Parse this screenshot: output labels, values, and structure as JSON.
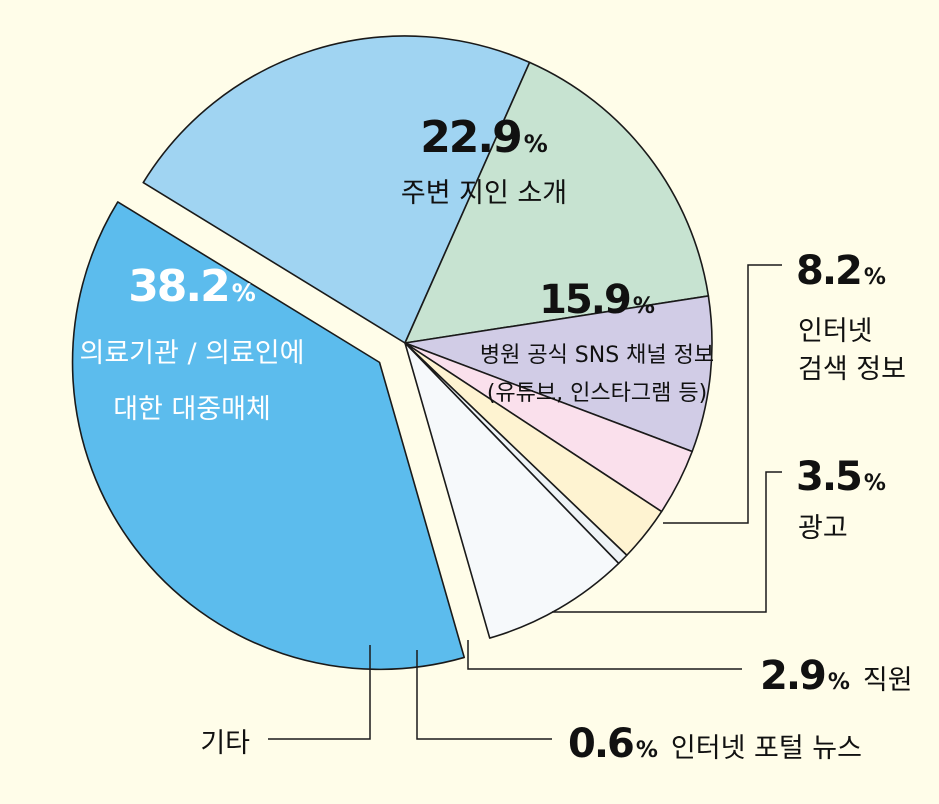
{
  "chart_data": {
    "type": "pie",
    "unit": "%",
    "slices": [
      {
        "label": "주변 지인 소개",
        "value": 22.9,
        "color": "#A0D4F2"
      },
      {
        "label": "병원 공식 SNS 채널 정보 (유튜브, 인스타그램 등)",
        "label_lines": [
          "병원 공식 SNS 채널 정보",
          "(유튜브, 인스타그램 등)"
        ],
        "value": 15.9,
        "color": "#C7E3D1"
      },
      {
        "label": "인터넷 검색 정보",
        "label_lines": [
          "인터넷",
          "검색 정보"
        ],
        "value": 8.2,
        "color": "#D1CCE6"
      },
      {
        "label": "광고",
        "value": 3.5,
        "color": "#FAE0EC"
      },
      {
        "label": "직원",
        "value": 2.9,
        "color": "#FEF3D1"
      },
      {
        "label": "인터넷 포털 뉴스",
        "value": 0.6,
        "color": "#EEF3F6"
      },
      {
        "label": "기타",
        "value": 7.8,
        "color": "#F6F9FB",
        "value_shown": false
      },
      {
        "label": "의료기관 / 의료인에 대한 대중매체",
        "label_lines": [
          "의료기관 / 의료인에",
          "대한 대중매체"
        ],
        "value": 38.2,
        "color": "#5CBCED",
        "exploded": true
      }
    ]
  }
}
